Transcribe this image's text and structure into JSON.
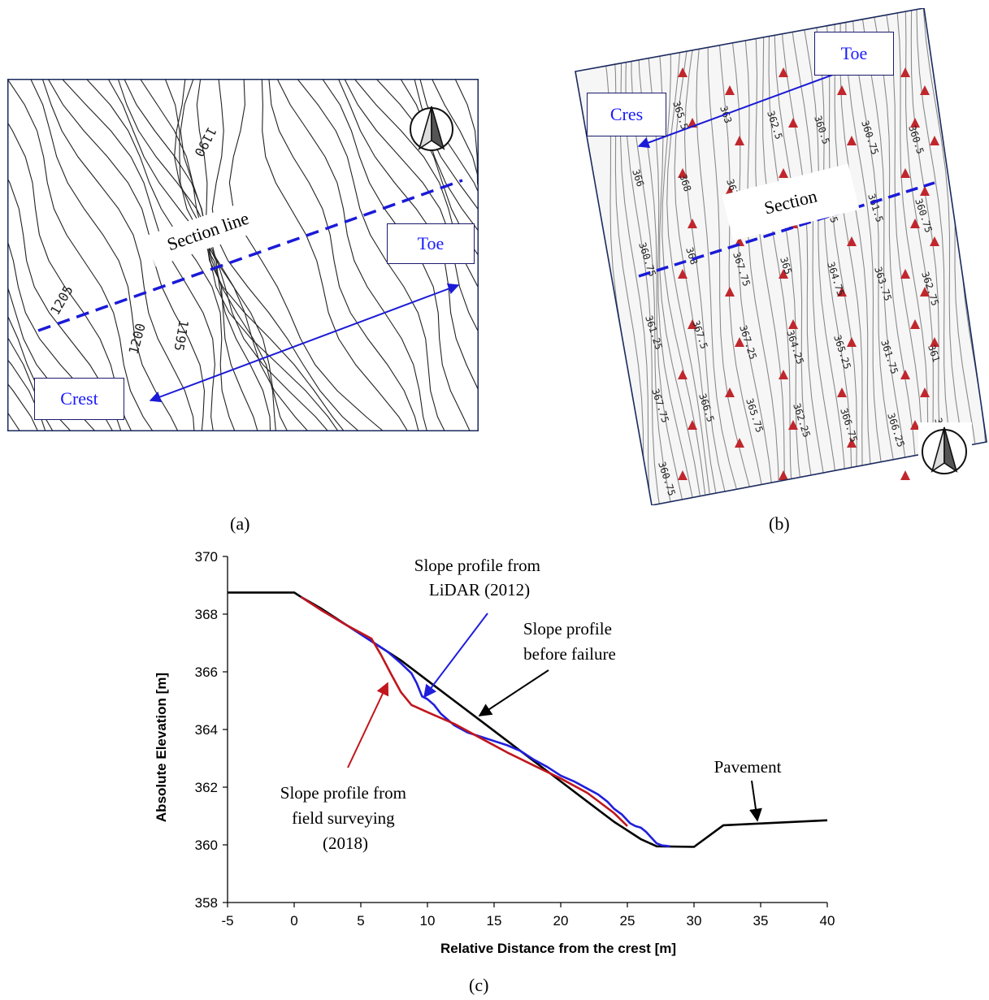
{
  "panel_a": {
    "contour_labels": [
      "1190",
      "1205",
      "1200",
      "1195"
    ],
    "section_label": "Section line",
    "toe_label": "Toe",
    "crest_label": "Crest",
    "caption": "(a)",
    "icon": "north-arrow-icon"
  },
  "panel_b": {
    "contour_labels": [
      "363.5",
      "365.5",
      "363",
      "362.5",
      "360.5",
      "360.75",
      "360.5",
      "366",
      "368",
      "363.5",
      "364",
      "363.25",
      "361.5",
      "360.75",
      "360.75",
      "368",
      "367.75",
      "365",
      "364.75",
      "363.75",
      "362.75",
      "361.25",
      "367.5",
      "367.25",
      "364.25",
      "365.25",
      "361.75",
      "361",
      "367.75",
      "366.5",
      "365.75",
      "362.25",
      "366.75",
      "366.25",
      "362",
      "360.75"
    ],
    "section_label": "Section",
    "toe_label": "Toe",
    "crest_label": "Cres",
    "caption": "(b)",
    "icon": "north-arrow-icon",
    "marker_color": "#c0272d"
  },
  "panel_c": {
    "caption": "(c)",
    "annotations": {
      "lidar_line1": "Slope profile from",
      "lidar_line2": "LiDAR (2012)",
      "before_line1": "Slope profile",
      "before_line2": "before failure",
      "field_line1": "Slope profile from",
      "field_line2": "field surveying",
      "field_line3": "(2018)",
      "pavement": "Pavement"
    }
  },
  "chart_data": {
    "type": "line",
    "title": "",
    "xlabel": "Relative Distance from the crest [m]",
    "ylabel": "Absolute Elevation [m]",
    "xlim": [
      -5,
      40
    ],
    "ylim": [
      358,
      370
    ],
    "xticks": [
      -5,
      0,
      5,
      10,
      15,
      20,
      25,
      30,
      35,
      40
    ],
    "yticks": [
      358,
      360,
      362,
      364,
      366,
      368,
      370
    ],
    "grid": false,
    "series": [
      {
        "name": "Slope profile before failure",
        "color": "#000000",
        "x": [
          -5,
          0,
          0.5,
          2,
          4,
          6,
          8,
          10,
          12,
          14,
          16,
          18,
          20,
          22,
          24,
          26,
          27.2,
          30,
          32.2,
          40
        ],
        "y": [
          368.75,
          368.75,
          368.6,
          368.2,
          367.6,
          367.0,
          366.4,
          365.7,
          365.0,
          364.3,
          363.6,
          362.9,
          362.2,
          361.5,
          360.8,
          360.2,
          359.95,
          359.93,
          360.68,
          360.85
        ]
      },
      {
        "name": "Slope profile from LiDAR (2012)",
        "color": "#1f1fdc",
        "x": [
          0.5,
          2,
          4,
          6,
          7,
          8,
          8.8,
          9.2,
          9.6,
          10,
          10.5,
          11,
          12,
          13,
          14,
          15,
          16,
          17,
          18,
          19,
          20,
          21,
          22,
          22.8,
          23.5,
          24,
          24.6,
          25.2,
          25.6,
          26,
          26.4,
          26.8,
          27.2,
          27.6,
          28.2
        ],
        "y": [
          368.6,
          368.15,
          367.6,
          367.0,
          366.7,
          366.3,
          365.95,
          365.6,
          365.15,
          365.05,
          364.85,
          364.55,
          364.15,
          363.9,
          363.75,
          363.6,
          363.45,
          363.25,
          362.95,
          362.7,
          362.4,
          362.2,
          361.95,
          361.75,
          361.5,
          361.25,
          361.05,
          360.75,
          360.65,
          360.6,
          360.45,
          360.25,
          360.05,
          359.98,
          359.95
        ]
      },
      {
        "name": "Slope profile from field surveying (2018)",
        "color": "#c0161c",
        "x": [
          0.5,
          2,
          4,
          5.8,
          6.5,
          7.3,
          8,
          8.8,
          10,
          12,
          14,
          16,
          18,
          20,
          22,
          24,
          25
        ],
        "y": [
          368.6,
          368.15,
          367.6,
          367.15,
          366.6,
          365.9,
          365.3,
          364.85,
          364.6,
          364.2,
          363.7,
          363.2,
          362.75,
          362.3,
          361.8,
          361.1,
          360.65
        ]
      }
    ]
  }
}
